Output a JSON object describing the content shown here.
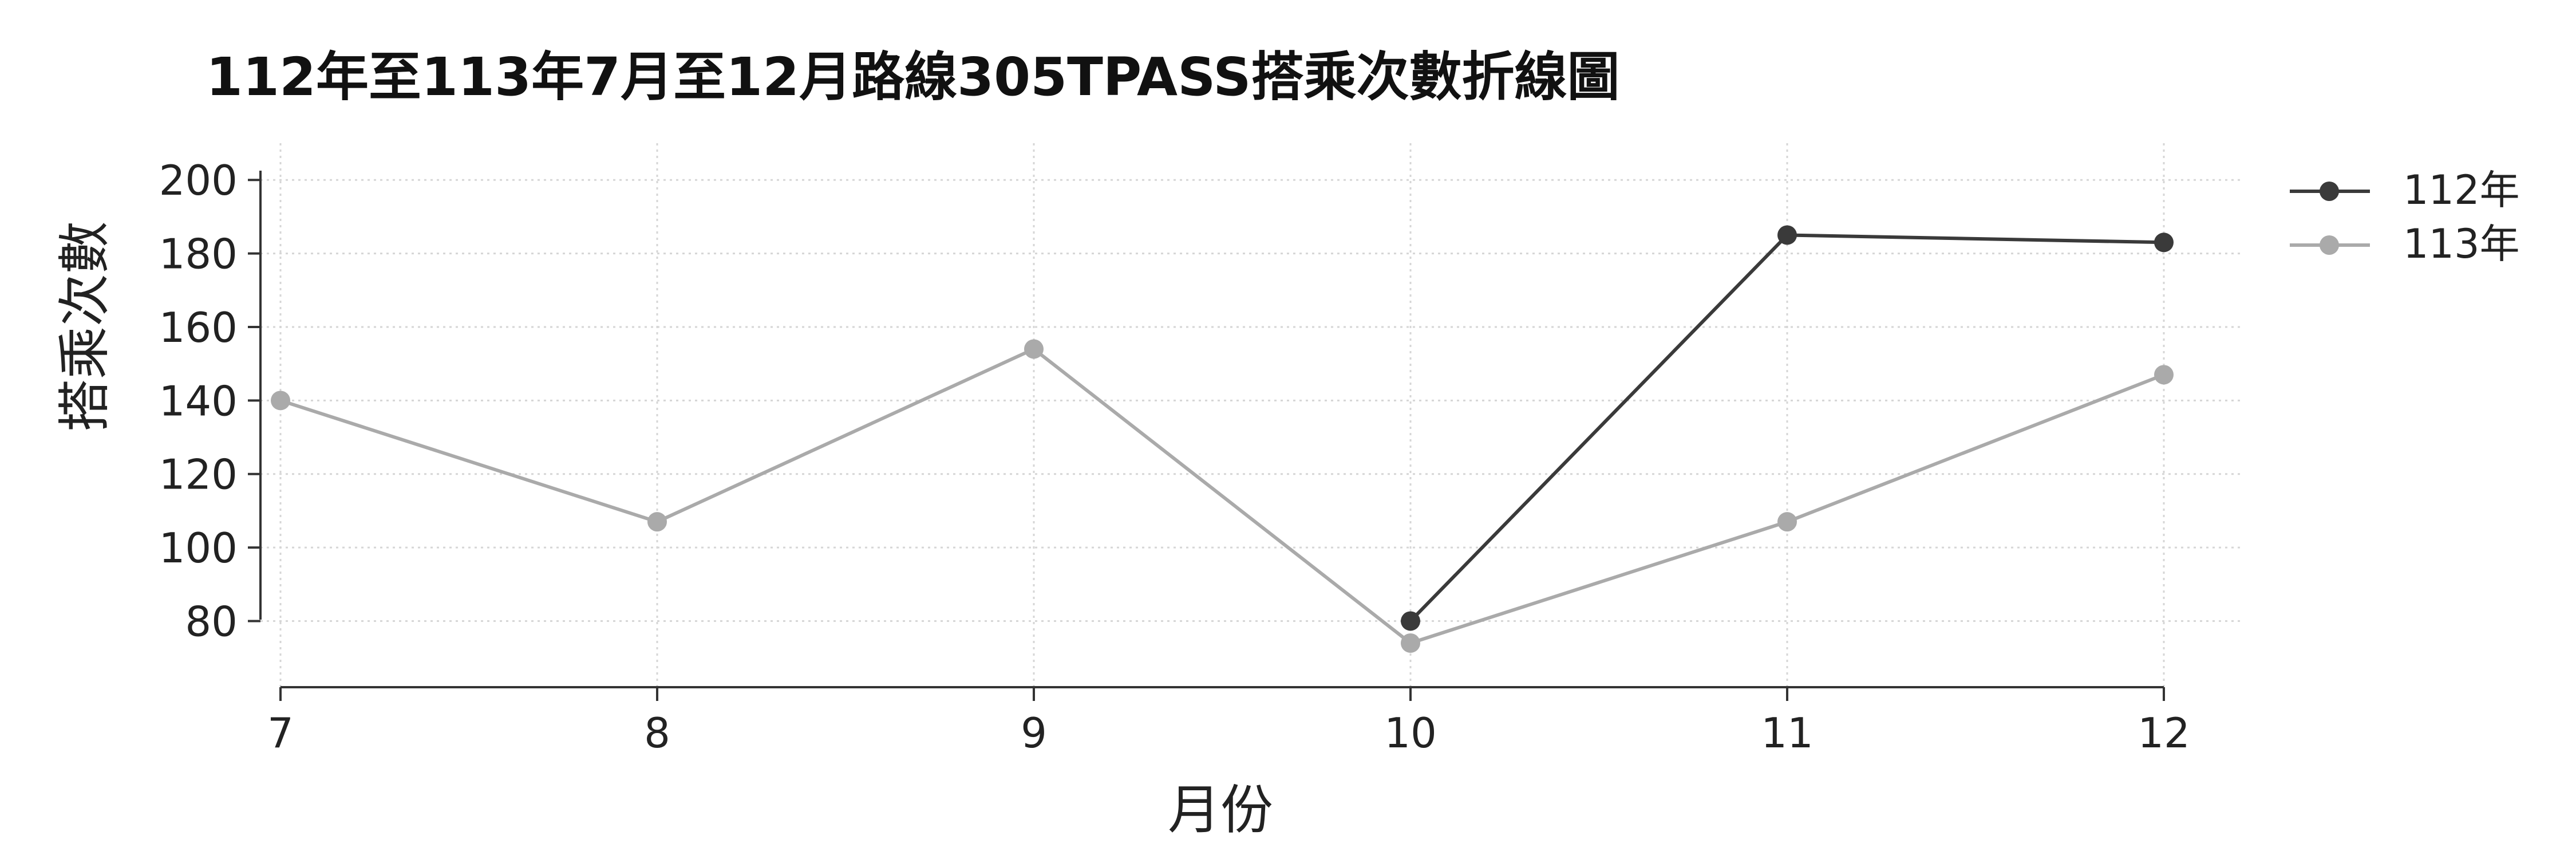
{
  "chart_data": {
    "type": "line",
    "title": "112年至113年7月至12月路線305TPASS搭乘次數折線圖",
    "xlabel": "月份",
    "ylabel": "搭乘次數",
    "categories": [
      "7",
      "8",
      "9",
      "10",
      "11",
      "12"
    ],
    "yticks": [
      "80",
      "100",
      "120",
      "140",
      "160",
      "180",
      "200"
    ],
    "ylim": [
      62,
      210
    ],
    "grid": true,
    "legend_position": "top-right, outside plot",
    "series": [
      {
        "name": "112年",
        "color": "#3a3a3a",
        "values": [
          null,
          null,
          null,
          80,
          185,
          183
        ]
      },
      {
        "name": "113年",
        "color": "#aaaaaa",
        "values": [
          140,
          107,
          154,
          74,
          107,
          147
        ]
      }
    ]
  }
}
